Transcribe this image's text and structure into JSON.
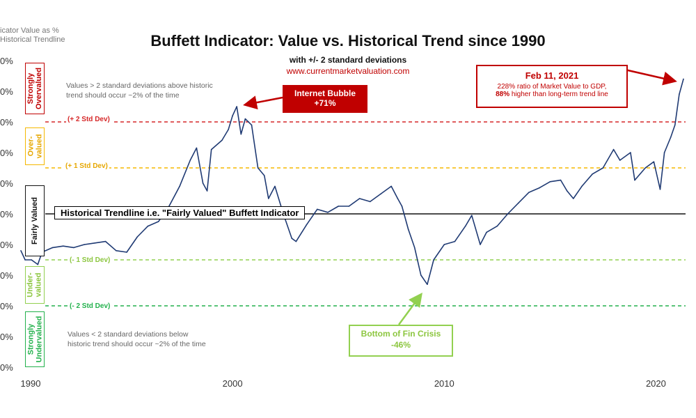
{
  "chart_data": {
    "type": "line",
    "title": "Buffett Indicator: Value vs. Historical Trend since 1990",
    "subtitle": "with +/- 2 standard deviations",
    "source": "www.currentmarketvaluation.com",
    "ylabel": "icator Value as %\nHistorical Trendline",
    "x_ticks": [
      "1990",
      "2000",
      "2010",
      "2020"
    ],
    "y_tick_labels": [
      "0%",
      "0%",
      "0%",
      "0%",
      "0%",
      "0%",
      "0%",
      "0%",
      "0%",
      "0%",
      "0%"
    ],
    "xlim": [
      1990,
      2021.4
    ],
    "ylim": [
      -1.0,
      1.0
    ],
    "bands": {
      "plus2": {
        "label": "+ 2 Std Dev",
        "value": 0.6,
        "color": "#d62728"
      },
      "plus1": {
        "label": "+ 1 Std Dev",
        "value": 0.3,
        "color": "#f5b800"
      },
      "trend": {
        "label": "Historical Trendline i.e. \"Fairly Valued\" Buffett Indicator",
        "value": 0.0,
        "color": "#111111"
      },
      "minus1": {
        "label": "- 1 Std Dev",
        "value": -0.3,
        "color": "#92d050"
      },
      "minus2": {
        "label": "- 2 Std Dev",
        "value": -0.6,
        "color": "#22b14c"
      }
    },
    "series": [
      {
        "color": "#1f3a73",
        "points": [
          [
            1990.0,
            -0.24
          ],
          [
            1990.2,
            -0.3
          ],
          [
            1990.5,
            -0.3
          ],
          [
            1990.8,
            -0.33
          ],
          [
            1991.0,
            -0.25
          ],
          [
            1991.5,
            -0.22
          ],
          [
            1992.0,
            -0.21
          ],
          [
            1992.5,
            -0.22
          ],
          [
            1993.0,
            -0.2
          ],
          [
            1993.5,
            -0.19
          ],
          [
            1994.0,
            -0.18
          ],
          [
            1994.5,
            -0.24
          ],
          [
            1995.0,
            -0.25
          ],
          [
            1995.5,
            -0.15
          ],
          [
            1996.0,
            -0.08
          ],
          [
            1996.5,
            -0.05
          ],
          [
            1997.0,
            0.05
          ],
          [
            1997.5,
            0.18
          ],
          [
            1998.0,
            0.35
          ],
          [
            1998.3,
            0.43
          ],
          [
            1998.6,
            0.2
          ],
          [
            1998.8,
            0.15
          ],
          [
            1999.0,
            0.42
          ],
          [
            1999.5,
            0.48
          ],
          [
            1999.8,
            0.55
          ],
          [
            2000.0,
            0.64
          ],
          [
            2000.2,
            0.7
          ],
          [
            2000.4,
            0.52
          ],
          [
            2000.6,
            0.62
          ],
          [
            2000.9,
            0.58
          ],
          [
            2001.2,
            0.3
          ],
          [
            2001.5,
            0.25
          ],
          [
            2001.7,
            0.1
          ],
          [
            2002.0,
            0.18
          ],
          [
            2002.4,
            0.0
          ],
          [
            2002.8,
            -0.16
          ],
          [
            2003.0,
            -0.18
          ],
          [
            2003.5,
            -0.07
          ],
          [
            2004.0,
            0.03
          ],
          [
            2004.5,
            0.01
          ],
          [
            2005.0,
            0.05
          ],
          [
            2005.5,
            0.05
          ],
          [
            2006.0,
            0.1
          ],
          [
            2006.5,
            0.08
          ],
          [
            2007.0,
            0.13
          ],
          [
            2007.5,
            0.18
          ],
          [
            2007.8,
            0.1
          ],
          [
            2008.0,
            0.05
          ],
          [
            2008.3,
            -0.1
          ],
          [
            2008.6,
            -0.22
          ],
          [
            2008.9,
            -0.4
          ],
          [
            2009.2,
            -0.46
          ],
          [
            2009.5,
            -0.3
          ],
          [
            2010.0,
            -0.2
          ],
          [
            2010.5,
            -0.18
          ],
          [
            2011.0,
            -0.08
          ],
          [
            2011.3,
            -0.01
          ],
          [
            2011.7,
            -0.2
          ],
          [
            2012.0,
            -0.12
          ],
          [
            2012.5,
            -0.08
          ],
          [
            2013.0,
            0.0
          ],
          [
            2013.5,
            0.07
          ],
          [
            2014.0,
            0.14
          ],
          [
            2014.5,
            0.17
          ],
          [
            2015.0,
            0.21
          ],
          [
            2015.5,
            0.22
          ],
          [
            2015.8,
            0.15
          ],
          [
            2016.1,
            0.1
          ],
          [
            2016.5,
            0.18
          ],
          [
            2017.0,
            0.26
          ],
          [
            2017.5,
            0.3
          ],
          [
            2018.0,
            0.42
          ],
          [
            2018.3,
            0.35
          ],
          [
            2018.8,
            0.4
          ],
          [
            2019.0,
            0.22
          ],
          [
            2019.5,
            0.3
          ],
          [
            2019.9,
            0.34
          ],
          [
            2020.2,
            0.16
          ],
          [
            2020.4,
            0.4
          ],
          [
            2020.7,
            0.5
          ],
          [
            2020.9,
            0.58
          ],
          [
            2021.1,
            0.78
          ],
          [
            2021.3,
            0.88
          ]
        ]
      }
    ]
  },
  "zones": {
    "strong_over": "Strongly\nOvervalued",
    "over": "Over-\nvalued",
    "fair": "Fairly Valued",
    "under": "Under-\nvalued",
    "strong_under": "Strongly\nUndervalued"
  },
  "notes": {
    "top": "Values > 2 standard deviations above historic\ntrend should occur ~2% of the time",
    "bottom": "Values < 2 standard deviations below\nhistoric trend should occur ~2% of the time"
  },
  "callouts": {
    "bubble": {
      "title": "Internet Bubble",
      "value": "+71%"
    },
    "crisis": {
      "title": "Bottom of Fin Crisis",
      "value": "-46%"
    },
    "feb2021": {
      "title": "Feb 11, 2021",
      "line1": "228% ratio of Market Value to GDP,",
      "line2_bold": "88%",
      "line2_rest": " higher than long-term trend line"
    }
  }
}
